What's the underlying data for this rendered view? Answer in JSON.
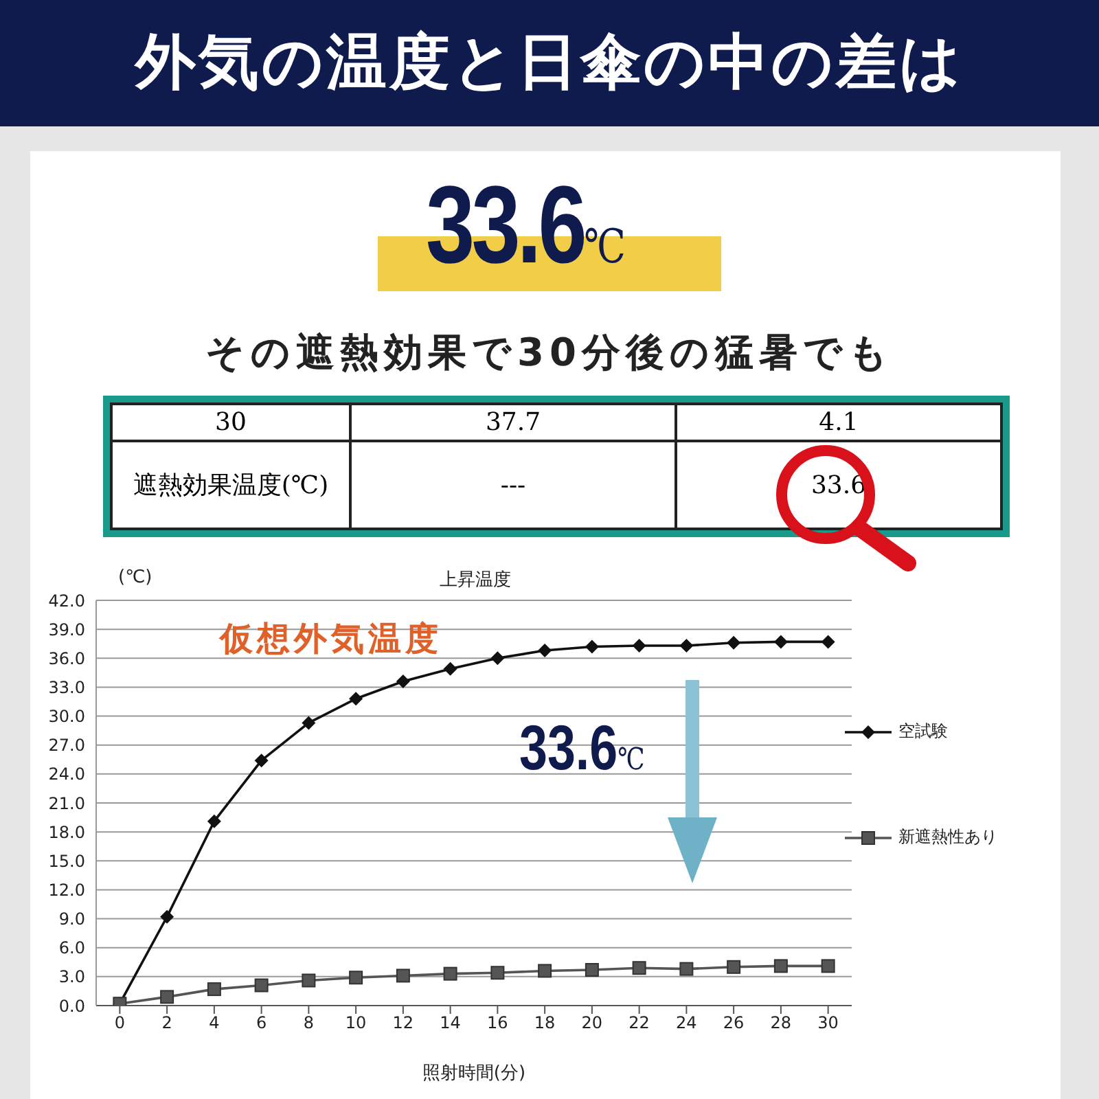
{
  "chart_data": {
    "type": "line",
    "title": "上昇温度",
    "subtitle": "外気の温度と日傘の中の差は",
    "xlabel": "照射時間(分)",
    "ylabel": "(℃)",
    "annotations": [
      "33.6℃",
      "その遮熱効果で30分後の猛暑でも",
      "30",
      "37.7",
      "4.1",
      "遮熱効果温度(℃)",
      "---",
      "33.6",
      "仮想外気温度",
      "33.6℃"
    ],
    "x": [
      0,
      2,
      4,
      6,
      8,
      10,
      12,
      14,
      16,
      18,
      20,
      22,
      24,
      26,
      28,
      30
    ],
    "series": [
      {
        "name": "空試験",
        "color": "#111111",
        "marker": "diamond",
        "values": [
          0.2,
          9.2,
          19.1,
          25.4,
          29.3,
          31.8,
          33.6,
          34.9,
          36.0,
          36.8,
          37.2,
          37.3,
          37.3,
          37.6,
          37.7,
          37.7
        ]
      },
      {
        "name": "新遮熱性あり",
        "color": "#555555",
        "marker": "square",
        "values": [
          0.2,
          0.9,
          1.7,
          2.1,
          2.6,
          2.9,
          3.1,
          3.3,
          3.4,
          3.6,
          3.7,
          3.9,
          3.8,
          4.0,
          4.1,
          4.1
        ]
      }
    ],
    "xlim": [
      -1,
      31
    ],
    "xticks": [
      0,
      2,
      4,
      6,
      8,
      10,
      12,
      14,
      16,
      18,
      20,
      22,
      24,
      26,
      28,
      30
    ],
    "ylim": [
      0,
      42
    ],
    "yticks": [
      {
        "value": 0,
        "label": "0.0"
      },
      {
        "value": 3,
        "label": "3.0"
      },
      {
        "value": 6,
        "label": "6.0"
      },
      {
        "value": 9,
        "label": "9.0"
      },
      {
        "value": 12,
        "label": "12.0"
      },
      {
        "value": 15,
        "label": "15.0"
      },
      {
        "value": 18,
        "label": "18.0"
      },
      {
        "value": 21,
        "label": "21.0"
      },
      {
        "value": 24,
        "label": "24.0"
      },
      {
        "value": 27,
        "label": "27.0"
      },
      {
        "value": 30,
        "label": "30.0"
      },
      {
        "value": 33,
        "label": "33.0"
      },
      {
        "value": 36,
        "label": "36.0"
      },
      {
        "value": 39,
        "label": "39.0"
      },
      {
        "value": 42,
        "label": "42.0"
      }
    ],
    "grid": "y",
    "legend": "right",
    "line_style": "solid"
  }
}
